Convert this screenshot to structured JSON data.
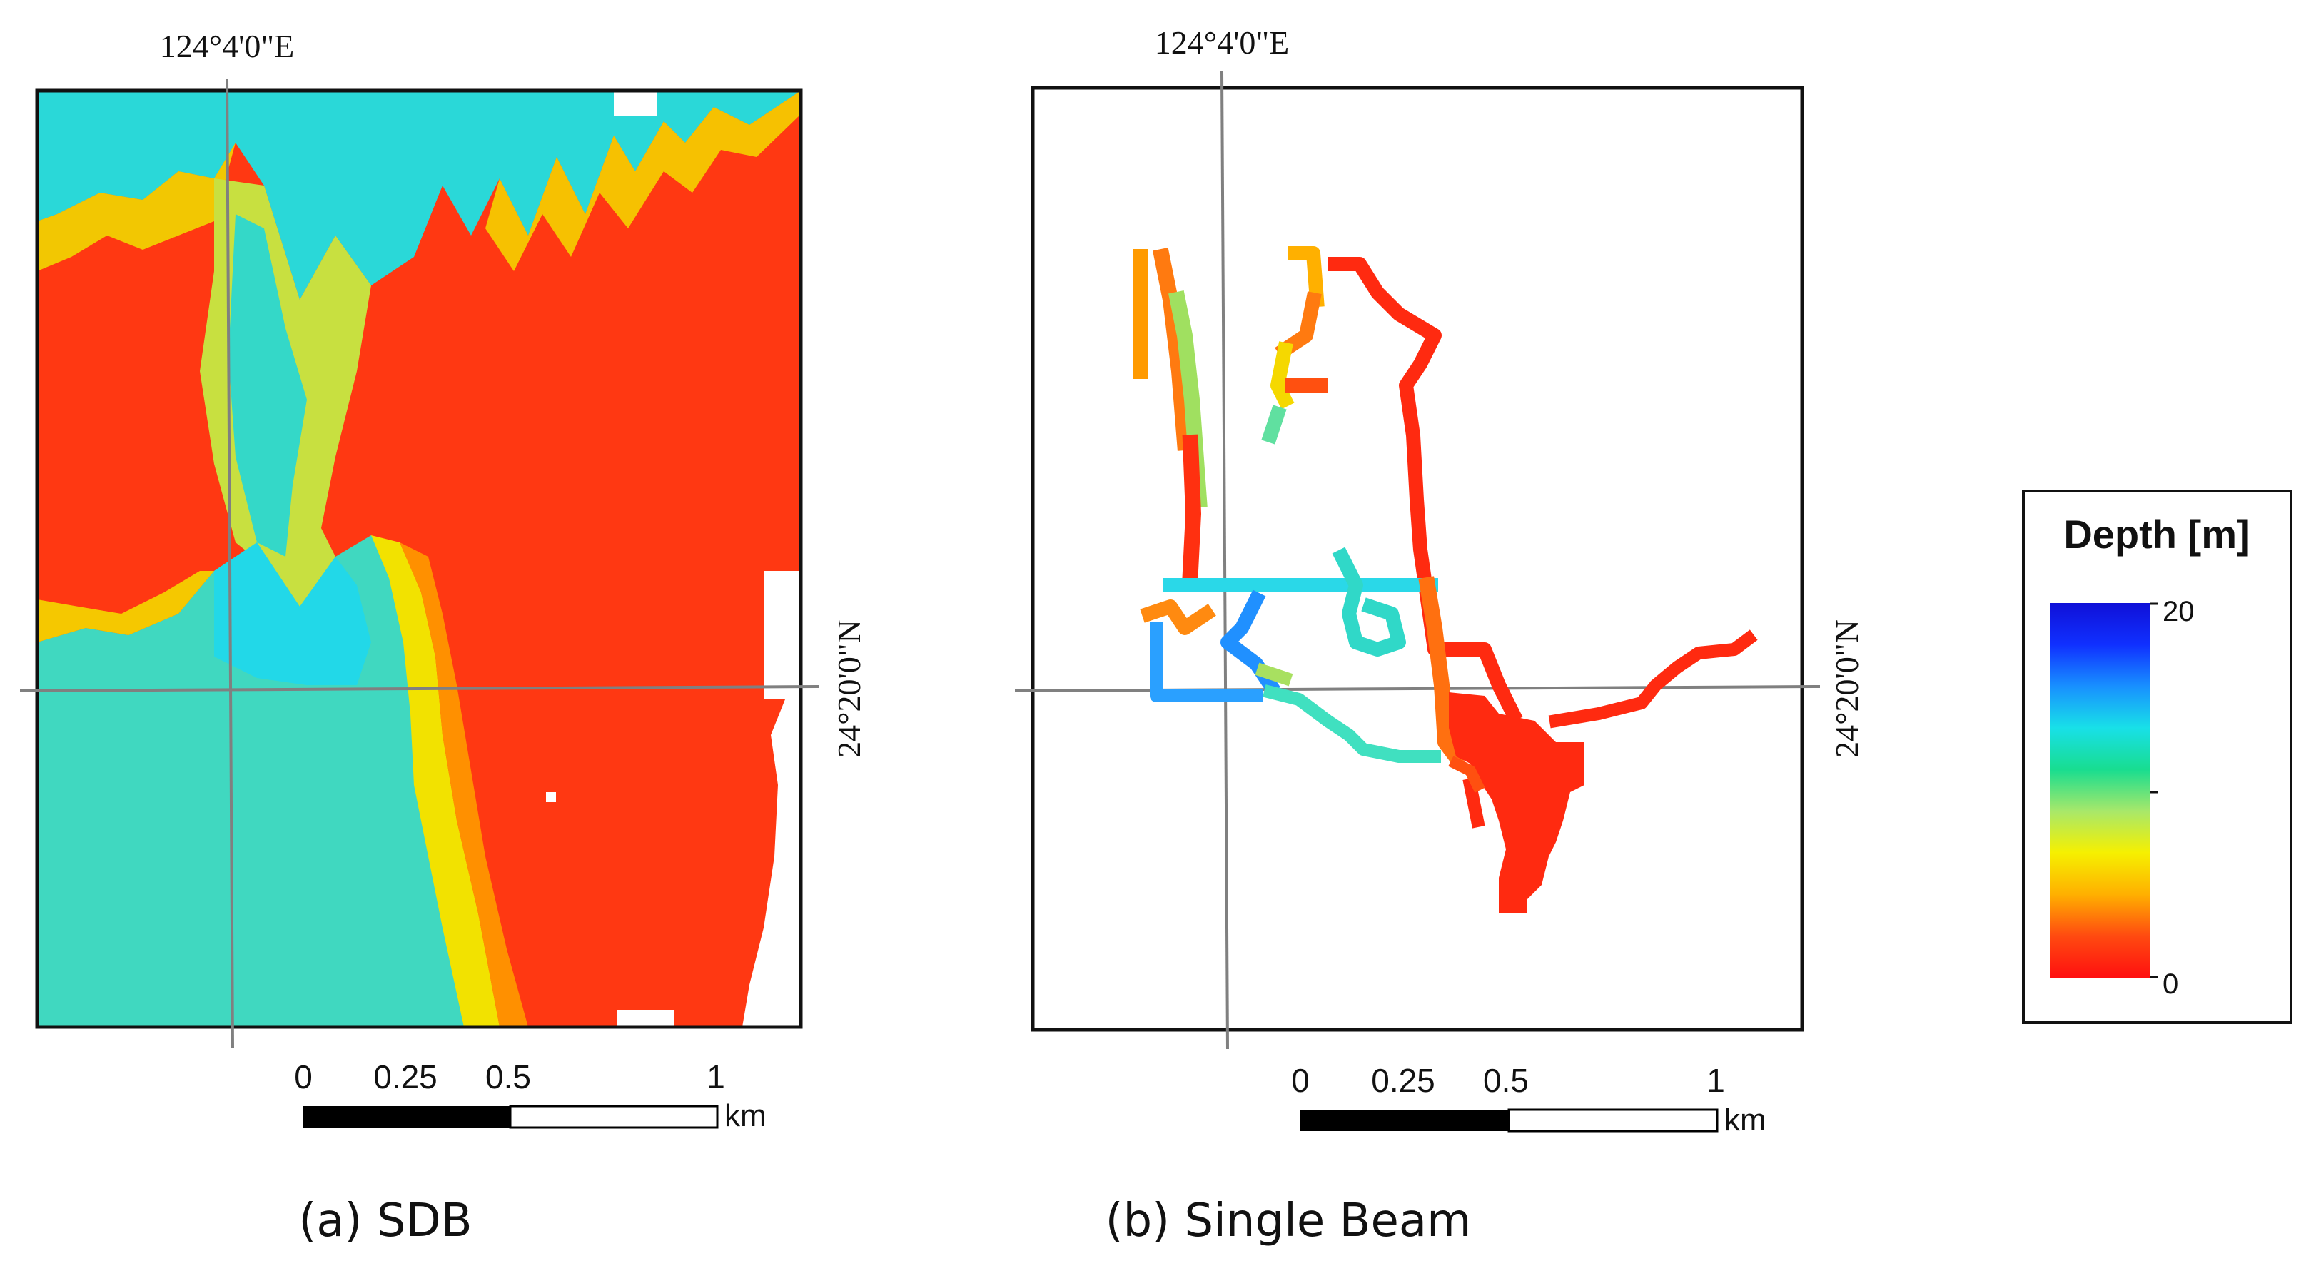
{
  "panels": [
    {
      "id": "sdb",
      "caption": "(a) SDB",
      "lon_label": "124°4'0\"E",
      "lat_label": "24°20'0\"N",
      "scale_labels": [
        "0",
        "0.25",
        "0.5",
        "1"
      ],
      "scale_unit": "km"
    },
    {
      "id": "single-beam",
      "caption": "(b) Single Beam",
      "lon_label": "124°4'0\"E",
      "lat_label": "24°20'0\"N",
      "scale_labels": [
        "0",
        "0.25",
        "0.5",
        "1"
      ],
      "scale_unit": "km"
    }
  ],
  "legend": {
    "title": "Depth [m]",
    "max_label": "20",
    "min_label": "0",
    "min_value": 0,
    "max_value": 20,
    "gradient_colors": [
      "#ff1010",
      "#ff4a10",
      "#ffb000",
      "#f6f000",
      "#a8e86a",
      "#18dd90",
      "#18e0e8",
      "#1890ff",
      "#1030ff",
      "#1010d8"
    ]
  },
  "colors": {
    "deep_blue": "#1040ff",
    "cyan": "#20d8e0",
    "green": "#30e0a0",
    "yellow": "#f5e000",
    "orange": "#ff9a00",
    "red": "#ff2a10",
    "frame": "#111111",
    "grid_line": "#808080"
  }
}
